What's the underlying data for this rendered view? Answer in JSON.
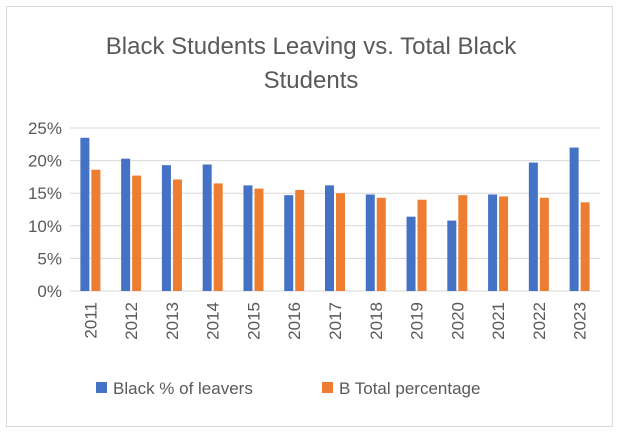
{
  "chart_data": {
    "type": "bar",
    "title_line1": "Black Students Leaving vs. Total Black",
    "title_line2": "Students",
    "categories": [
      "2011",
      "2012",
      "2013",
      "2014",
      "2015",
      "2016",
      "2017",
      "2018",
      "2019",
      "2020",
      "2021",
      "2022",
      "2023"
    ],
    "series": [
      {
        "name": "Black % of leavers",
        "color": "#4472c4",
        "values": [
          23.5,
          20.3,
          19.3,
          19.4,
          16.2,
          14.7,
          16.2,
          14.8,
          11.4,
          10.8,
          14.8,
          19.7,
          22.0
        ]
      },
      {
        "name": "B Total percentage",
        "color": "#ed7d31",
        "values": [
          18.6,
          17.7,
          17.1,
          16.5,
          15.7,
          15.5,
          15.0,
          14.3,
          14.0,
          14.7,
          14.5,
          14.3,
          13.6
        ]
      }
    ],
    "yticks": [
      "0%",
      "5%",
      "10%",
      "15%",
      "20%",
      "25%"
    ],
    "ylim": [
      0,
      25
    ],
    "grid": true,
    "legend_position": "bottom",
    "xlabel": "",
    "ylabel": ""
  }
}
